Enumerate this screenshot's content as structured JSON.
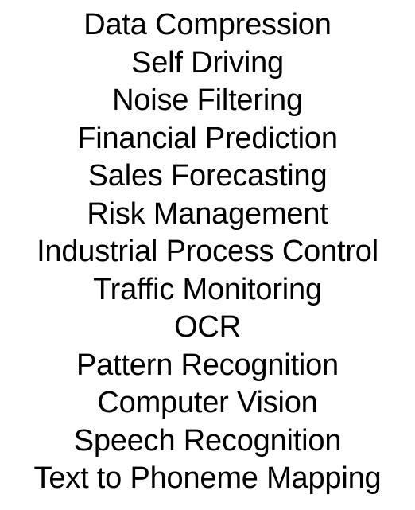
{
  "items": [
    "Data Compression",
    "Self Driving",
    "Noise Filtering",
    "Financial Prediction",
    "Sales Forecasting",
    "Risk Management",
    "Industrial Process Control",
    "Traffic Monitoring",
    "OCR",
    "Pattern Recognition",
    "Computer Vision",
    "Speech Recognition",
    "Text to Phoneme Mapping"
  ],
  "colors": {
    "background": "#ffffff",
    "text": "#000000"
  }
}
